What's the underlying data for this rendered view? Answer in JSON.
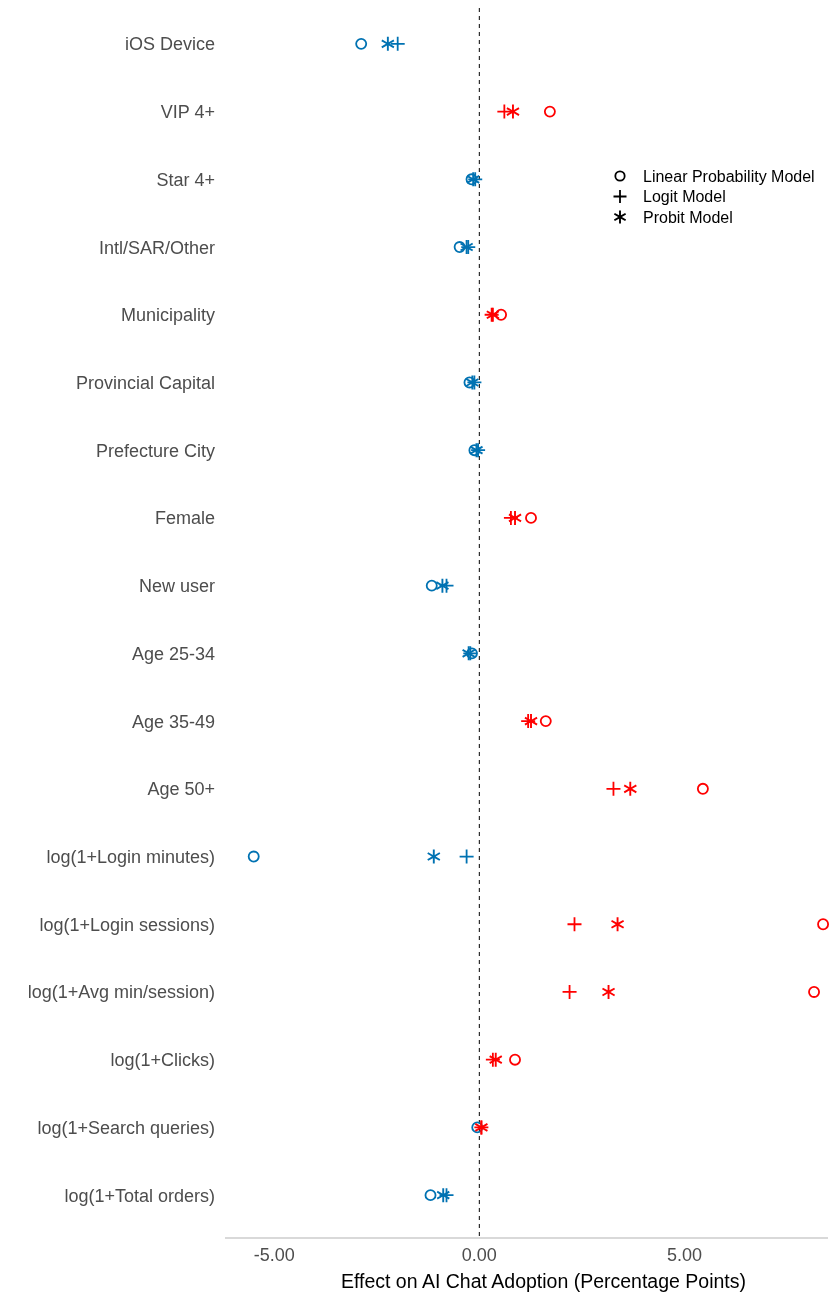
{
  "chart_data": {
    "type": "scatter",
    "orientation": "horizontal",
    "xlabel": "Effect on AI Chat Adoption (Percentage Points)",
    "categories": [
      "iOS Device",
      "VIP 4+",
      "Star 4+",
      "Intl/SAR/Other",
      "Municipality",
      "Provincial Capital",
      "Prefecture City",
      "Female",
      "New user",
      "Age 25-34",
      "Age 35-49",
      "Age 50+",
      "log(1+Login minutes)",
      "log(1+Login sessions)",
      "log(1+Avg min/session)",
      "log(1+Clicks)",
      "log(1+Search queries)",
      "log(1+Total orders)"
    ],
    "series": [
      {
        "name": "Linear Probability Model",
        "marker": "circle",
        "values": [
          -2.88,
          1.72,
          -0.19,
          -0.48,
          0.53,
          -0.24,
          -0.12,
          1.26,
          -1.16,
          -0.18,
          1.62,
          5.45,
          -5.5,
          8.38,
          8.16,
          0.87,
          -0.05,
          -1.19
        ],
        "colors": [
          "#0072b2",
          "#ff0000",
          "#0072b2",
          "#0072b2",
          "#ff0000",
          "#0072b2",
          "#0072b2",
          "#ff0000",
          "#0072b2",
          "#0072b2",
          "#ff0000",
          "#ff0000",
          "#0072b2",
          "#ff0000",
          "#ff0000",
          "#ff0000",
          "#0072b2",
          "#0072b2"
        ]
      },
      {
        "name": "Logit Model",
        "marker": "cross",
        "values": [
          -1.99,
          0.61,
          -0.1,
          -0.27,
          0.3,
          -0.12,
          -0.03,
          0.77,
          -0.8,
          -0.22,
          1.19,
          3.27,
          -0.31,
          2.32,
          2.2,
          0.33,
          0.05,
          -0.8
        ],
        "colors": [
          "#0072b2",
          "#ff0000",
          "#0072b2",
          "#0072b2",
          "#ff0000",
          "#0072b2",
          "#0072b2",
          "#ff0000",
          "#0072b2",
          "#0072b2",
          "#ff0000",
          "#ff0000",
          "#0072b2",
          "#ff0000",
          "#ff0000",
          "#ff0000",
          "#ff0000",
          "#0072b2"
        ]
      },
      {
        "name": "Probit Model",
        "marker": "star",
        "values": [
          -2.23,
          0.82,
          -0.15,
          -0.31,
          0.33,
          -0.17,
          -0.07,
          0.87,
          -0.9,
          -0.26,
          1.26,
          3.68,
          -1.11,
          3.37,
          3.15,
          0.4,
          0.05,
          -0.88
        ],
        "colors": [
          "#0072b2",
          "#ff0000",
          "#0072b2",
          "#0072b2",
          "#ff0000",
          "#0072b2",
          "#0072b2",
          "#ff0000",
          "#0072b2",
          "#0072b2",
          "#ff0000",
          "#ff0000",
          "#0072b2",
          "#ff0000",
          "#ff0000",
          "#ff0000",
          "#ff0000",
          "#0072b2"
        ]
      }
    ],
    "xlim": [
      -6.2,
      8.5
    ],
    "xticks": [
      {
        "value": -5,
        "label": "-5.00"
      },
      {
        "value": 0,
        "label": "0.00"
      },
      {
        "value": 5,
        "label": "5.00"
      }
    ],
    "ref_lines": [
      {
        "axis": "x",
        "value": 0,
        "color": "#000000",
        "line_style": "dashed"
      }
    ],
    "legend": "top right"
  }
}
